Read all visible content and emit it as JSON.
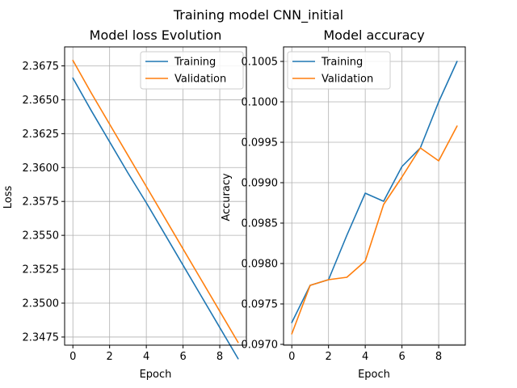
{
  "figure": {
    "suptitle": "Training model CNN_initial"
  },
  "colors": {
    "training": "#1f77b4",
    "validation": "#ff7f0e",
    "grid": "#b0b0b0"
  },
  "chart_data": [
    {
      "type": "line",
      "title": "Model loss Evolution",
      "xlabel": "Epoch",
      "ylabel": "Loss",
      "x": [
        0,
        1,
        2,
        3,
        4,
        5,
        6,
        7,
        8,
        9
      ],
      "xlim": [
        -0.45,
        9.45
      ],
      "ylim": [
        2.3469,
        2.3689
      ],
      "xticks": [
        0,
        2,
        4,
        6,
        8
      ],
      "xtick_labels": [
        "0",
        "2",
        "4",
        "6",
        "8"
      ],
      "yticks": [
        2.3475,
        2.35,
        2.3525,
        2.355,
        2.3575,
        2.36,
        2.3625,
        2.365,
        2.3675
      ],
      "ytick_labels": [
        "2.3475",
        "2.3500",
        "2.3525",
        "2.3550",
        "2.3575",
        "2.3600",
        "2.3625",
        "2.3650",
        "2.3675"
      ],
      "grid": true,
      "legend": "upper right",
      "series": [
        {
          "name": "Training",
          "values": [
            2.3666,
            2.3642,
            2.3619,
            2.3596,
            2.3574,
            2.3551,
            2.3528,
            2.3505,
            2.3482,
            2.3459
          ]
        },
        {
          "name": "Validation",
          "values": [
            2.3679,
            2.3655,
            2.3632,
            2.3609,
            2.3586,
            2.3563,
            2.354,
            2.3517,
            2.3494,
            2.3471
          ]
        }
      ]
    },
    {
      "type": "line",
      "title": "Model accuracy",
      "xlabel": "Epoch",
      "ylabel": "Accuracy",
      "x": [
        0,
        1,
        2,
        3,
        4,
        5,
        6,
        7,
        8,
        9
      ],
      "xlim": [
        -0.45,
        9.45
      ],
      "ylim": [
        0.09699,
        0.10068
      ],
      "xticks": [
        0,
        2,
        4,
        6,
        8
      ],
      "xtick_labels": [
        "0",
        "2",
        "4",
        "6",
        "8"
      ],
      "yticks": [
        0.097,
        0.0975,
        0.098,
        0.0985,
        0.099,
        0.0995,
        0.1,
        0.1005
      ],
      "ytick_labels": [
        "0.0970",
        "0.0975",
        "0.0980",
        "0.0985",
        "0.0990",
        "0.0995",
        "0.1000",
        "0.1005"
      ],
      "grid": true,
      "legend": "upper left",
      "series": [
        {
          "name": "Training",
          "values": [
            0.09727,
            0.09773,
            0.0978,
            0.09835,
            0.09887,
            0.09877,
            0.0992,
            0.09943,
            0.1,
            0.1005
          ]
        },
        {
          "name": "Validation",
          "values": [
            0.09713,
            0.09773,
            0.0978,
            0.09783,
            0.09803,
            0.09873,
            0.09907,
            0.09943,
            0.09927,
            0.0997
          ]
        }
      ]
    }
  ]
}
